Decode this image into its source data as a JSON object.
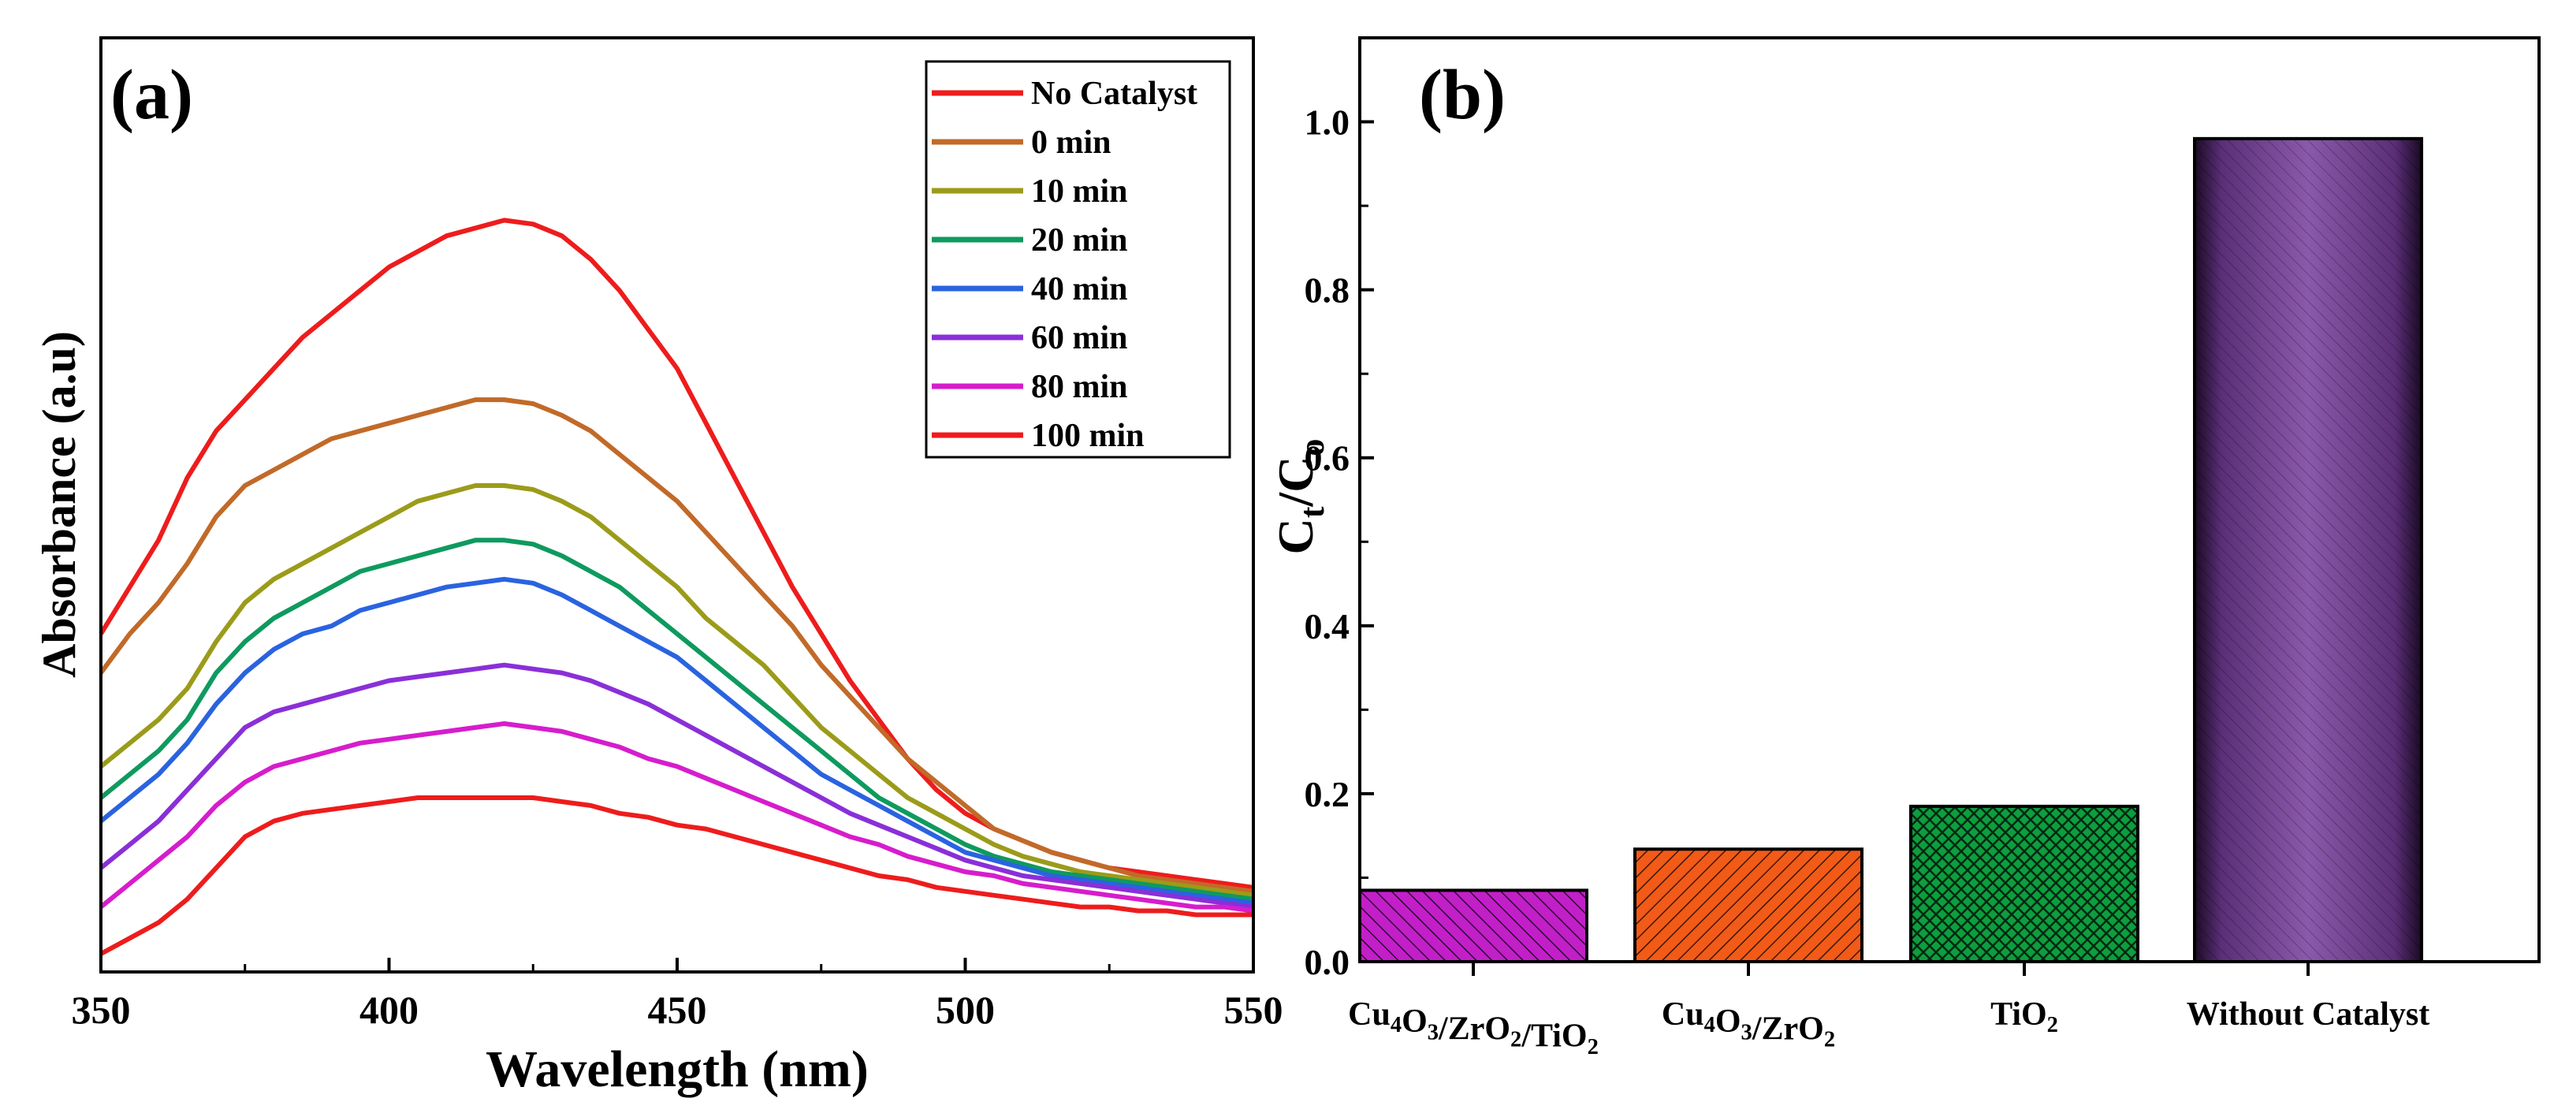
{
  "chart_data": [
    {
      "panel_label": "(a)",
      "type": "line",
      "xlabel": "Wavelength (nm)",
      "ylabel": "Absorbance (a.u)",
      "xlim": [
        350,
        550
      ],
      "ylim": [
        0,
        1
      ],
      "xticks": [
        "350",
        "400",
        "450",
        "500",
        "550"
      ],
      "legend_position": "top-right",
      "x": [
        350,
        355,
        360,
        365,
        370,
        375,
        380,
        385,
        390,
        395,
        400,
        405,
        410,
        415,
        420,
        425,
        430,
        435,
        440,
        445,
        450,
        455,
        460,
        465,
        470,
        475,
        480,
        485,
        490,
        495,
        500,
        505,
        510,
        515,
        520,
        525,
        530,
        535,
        540,
        545,
        550
      ],
      "series": [
        {
          "name": "No Catalyst",
          "color": "#ee1c1c",
          "values": [
            0.41,
            0.47,
            0.53,
            0.61,
            0.67,
            0.71,
            0.75,
            0.79,
            0.82,
            0.85,
            0.88,
            0.9,
            0.92,
            0.93,
            0.94,
            0.935,
            0.92,
            0.89,
            0.85,
            0.8,
            0.75,
            0.68,
            0.61,
            0.54,
            0.47,
            0.41,
            0.35,
            0.3,
            0.25,
            0.21,
            0.18,
            0.16,
            0.145,
            0.13,
            0.12,
            0.11,
            0.105,
            0.1,
            0.095,
            0.09,
            0.085
          ]
        },
        {
          "name": "0 min",
          "color": "#c16a29",
          "values": [
            0.36,
            0.41,
            0.45,
            0.5,
            0.56,
            0.6,
            0.62,
            0.64,
            0.66,
            0.67,
            0.68,
            0.69,
            0.7,
            0.71,
            0.71,
            0.705,
            0.69,
            0.67,
            0.64,
            0.61,
            0.58,
            0.54,
            0.5,
            0.46,
            0.42,
            0.37,
            0.33,
            0.29,
            0.25,
            0.22,
            0.19,
            0.16,
            0.145,
            0.13,
            0.12,
            0.11,
            0.1,
            0.095,
            0.09,
            0.085,
            0.08
          ]
        },
        {
          "name": "10 min",
          "color": "#9b9b1a",
          "values": [
            0.24,
            0.27,
            0.3,
            0.34,
            0.4,
            0.45,
            0.48,
            0.5,
            0.52,
            0.54,
            0.56,
            0.58,
            0.59,
            0.6,
            0.6,
            0.595,
            0.58,
            0.56,
            0.53,
            0.5,
            0.47,
            0.43,
            0.4,
            0.37,
            0.33,
            0.29,
            0.26,
            0.23,
            0.2,
            0.18,
            0.16,
            0.14,
            0.125,
            0.115,
            0.105,
            0.1,
            0.095,
            0.09,
            0.085,
            0.08,
            0.075
          ]
        },
        {
          "name": "20 min",
          "color": "#0e9a5e",
          "values": [
            0.2,
            0.23,
            0.26,
            0.3,
            0.36,
            0.4,
            0.43,
            0.45,
            0.47,
            0.49,
            0.5,
            0.51,
            0.52,
            0.53,
            0.53,
            0.525,
            0.51,
            0.49,
            0.47,
            0.44,
            0.41,
            0.38,
            0.35,
            0.32,
            0.29,
            0.26,
            0.23,
            0.2,
            0.18,
            0.16,
            0.14,
            0.125,
            0.115,
            0.105,
            0.1,
            0.095,
            0.09,
            0.085,
            0.08,
            0.075,
            0.07
          ]
        },
        {
          "name": "40 min",
          "color": "#2a63e0",
          "values": [
            0.17,
            0.2,
            0.23,
            0.27,
            0.32,
            0.36,
            0.39,
            0.41,
            0.42,
            0.44,
            0.45,
            0.46,
            0.47,
            0.475,
            0.48,
            0.475,
            0.46,
            0.44,
            0.42,
            0.4,
            0.38,
            0.35,
            0.32,
            0.29,
            0.26,
            0.23,
            0.21,
            0.19,
            0.17,
            0.15,
            0.13,
            0.12,
            0.11,
            0.1,
            0.095,
            0.09,
            0.085,
            0.08,
            0.075,
            0.07,
            0.065
          ]
        },
        {
          "name": "60 min",
          "color": "#8a2fd8",
          "values": [
            0.11,
            0.14,
            0.17,
            0.21,
            0.25,
            0.29,
            0.31,
            0.32,
            0.33,
            0.34,
            0.35,
            0.355,
            0.36,
            0.365,
            0.37,
            0.365,
            0.36,
            0.35,
            0.335,
            0.32,
            0.3,
            0.28,
            0.26,
            0.24,
            0.22,
            0.2,
            0.18,
            0.165,
            0.15,
            0.135,
            0.12,
            0.11,
            0.1,
            0.095,
            0.09,
            0.085,
            0.08,
            0.075,
            0.07,
            0.065,
            0.06
          ]
        },
        {
          "name": "80 min",
          "color": "#d61dcc",
          "values": [
            0.06,
            0.09,
            0.12,
            0.15,
            0.19,
            0.22,
            0.24,
            0.25,
            0.26,
            0.27,
            0.275,
            0.28,
            0.285,
            0.29,
            0.295,
            0.29,
            0.285,
            0.275,
            0.265,
            0.25,
            0.24,
            0.225,
            0.21,
            0.195,
            0.18,
            0.165,
            0.15,
            0.14,
            0.125,
            0.115,
            0.105,
            0.1,
            0.09,
            0.085,
            0.08,
            0.075,
            0.07,
            0.065,
            0.06,
            0.06,
            0.055
          ]
        },
        {
          "name": "100 min",
          "color": "#ee1c1c",
          "values": [
            0.0,
            0.02,
            0.04,
            0.07,
            0.11,
            0.15,
            0.17,
            0.18,
            0.185,
            0.19,
            0.195,
            0.2,
            0.2,
            0.2,
            0.2,
            0.2,
            0.195,
            0.19,
            0.18,
            0.175,
            0.165,
            0.16,
            0.15,
            0.14,
            0.13,
            0.12,
            0.11,
            0.1,
            0.095,
            0.085,
            0.08,
            0.075,
            0.07,
            0.065,
            0.06,
            0.06,
            0.055,
            0.055,
            0.05,
            0.05,
            0.05
          ]
        }
      ]
    },
    {
      "panel_label": "(b)",
      "type": "bar",
      "ylabel": "Ct/Co",
      "ylim": [
        0,
        1.1
      ],
      "yticks": [
        "0.0",
        "0.2",
        "0.4",
        "0.6",
        "0.8",
        "1.0"
      ],
      "categories": [
        "Cu4O3/ZrO2/TiO2",
        "Cu4O3/ZrO2",
        "TiO2",
        "Without Catalyst"
      ],
      "values": [
        0.085,
        0.134,
        0.185,
        0.98
      ],
      "colors": [
        "#c21fc9",
        "#f25a17",
        "#0d9e3f",
        "#6e3a8c"
      ]
    }
  ]
}
